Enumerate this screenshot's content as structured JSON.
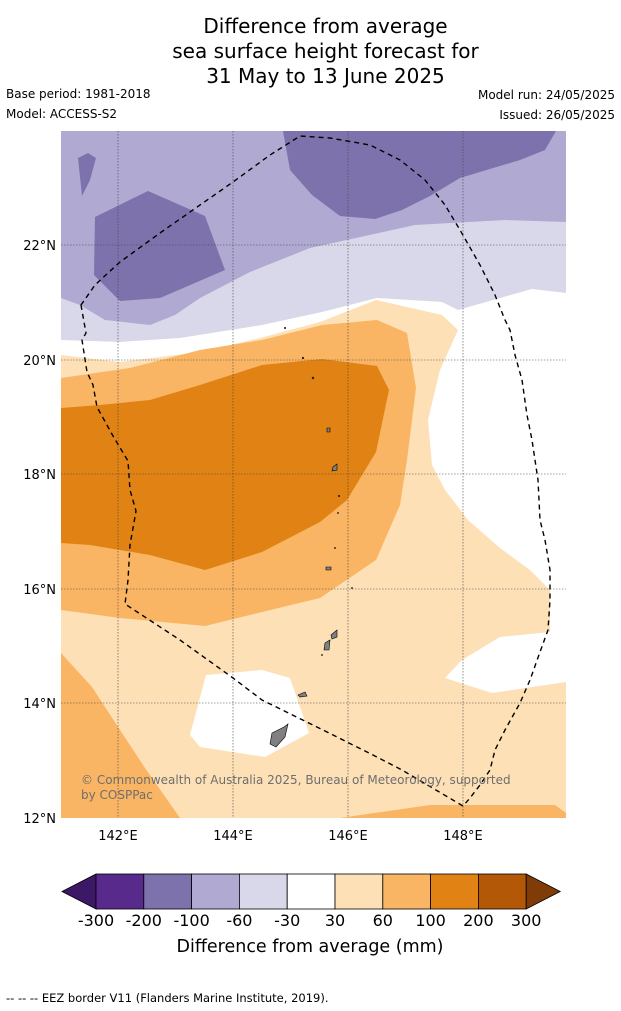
{
  "title_lines": [
    "Difference from average",
    "sea surface height forecast for",
    "31 May to 13 June 2025"
  ],
  "base_period": "Base period: 1981-2018",
  "model": "Model: ACCESS-S2",
  "model_run": "Model run: 24/05/2025",
  "issued": "Issued: 26/05/2025",
  "lon_ticks": [
    "142°E",
    "144°E",
    "146°E",
    "148°E"
  ],
  "lat_ticks": [
    "22°N",
    "20°N",
    "18°N",
    "16°N",
    "14°N",
    "12°N"
  ],
  "attribution": "© Commonwealth of Australia 2025, Bureau of Meteorology, supported by COSPPac",
  "colorbar": {
    "labels": [
      "-300",
      "-200",
      "-100",
      "-60",
      "-30",
      "30",
      "60",
      "100",
      "200",
      "300"
    ],
    "colors": [
      "#3d1866",
      "#572a8b",
      "#7e72ac",
      "#b0a9d1",
      "#d9d8ea",
      "#ffffff",
      "#fde0b6",
      "#f9b563",
      "#e08214",
      "#b35806",
      "#7f3b08"
    ],
    "title": "Difference from average (mm)"
  },
  "footer": "--  --  -- EEZ border V11 (Flanders Marine Institute, 2019)."
}
